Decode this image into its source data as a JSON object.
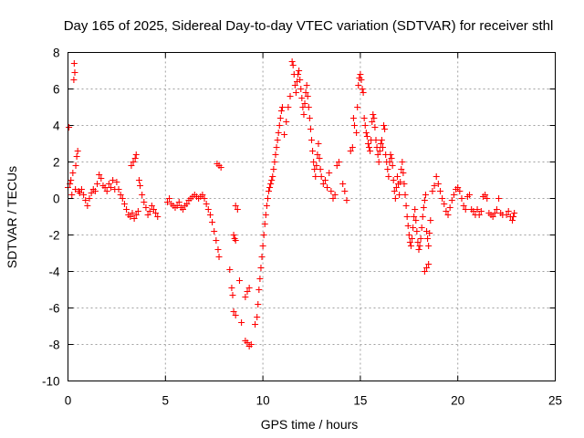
{
  "chart_data": {
    "type": "scatter",
    "title": "Day 165 of 2025, Sidereal Day-to-day VTEC variation (SDTVAR) for receiver sthl",
    "xlabel": "GPS time / hours",
    "ylabel": "SDTVAR / TECUs",
    "xlim": [
      0,
      25
    ],
    "ylim": [
      -10,
      8
    ],
    "x_ticks": [
      0,
      5,
      10,
      15,
      20,
      25
    ],
    "y_ticks": [
      -10,
      -8,
      -6,
      -4,
      -2,
      0,
      2,
      4,
      6,
      8
    ],
    "x_tick_labels": [
      "0",
      "5",
      "10",
      "15",
      "20",
      "25"
    ],
    "y_tick_labels": [
      "-10",
      "-8",
      "-6",
      "-4",
      "-2",
      "0",
      "2",
      "4",
      "6",
      "8"
    ],
    "grid": true,
    "marker": "+",
    "color": "#ff0000",
    "series": [
      {
        "name": "sthl",
        "points": [
          [
            0.0,
            0.6
          ],
          [
            0.05,
            3.9
          ],
          [
            0.1,
            0.8
          ],
          [
            0.15,
            1.0
          ],
          [
            0.2,
            0.2
          ],
          [
            0.25,
            1.4
          ],
          [
            0.3,
            6.5
          ],
          [
            0.32,
            7.4
          ],
          [
            0.35,
            6.9
          ],
          [
            0.38,
            0.5
          ],
          [
            0.4,
            1.8
          ],
          [
            0.45,
            2.3
          ],
          [
            0.5,
            2.6
          ],
          [
            0.55,
            0.4
          ],
          [
            0.6,
            0.3
          ],
          [
            0.7,
            0.5
          ],
          [
            0.8,
            0.2
          ],
          [
            0.9,
            -0.1
          ],
          [
            1.0,
            -0.4
          ],
          [
            1.1,
            0.0
          ],
          [
            1.2,
            0.3
          ],
          [
            1.3,
            0.5
          ],
          [
            1.4,
            0.4
          ],
          [
            1.5,
            0.8
          ],
          [
            1.6,
            1.3
          ],
          [
            1.7,
            1.1
          ],
          [
            1.8,
            0.7
          ],
          [
            1.9,
            0.6
          ],
          [
            2.0,
            0.4
          ],
          [
            2.1,
            0.8
          ],
          [
            2.2,
            0.6
          ],
          [
            2.3,
            1.0
          ],
          [
            2.4,
            0.5
          ],
          [
            2.5,
            0.9
          ],
          [
            2.6,
            0.5
          ],
          [
            2.7,
            0.2
          ],
          [
            2.8,
            0.0
          ],
          [
            2.9,
            -0.3
          ],
          [
            3.0,
            -0.6
          ],
          [
            3.1,
            -0.9
          ],
          [
            3.2,
            -1.0
          ],
          [
            3.3,
            -0.8
          ],
          [
            3.25,
            1.8
          ],
          [
            3.35,
            2.0
          ],
          [
            3.45,
            2.2
          ],
          [
            3.5,
            2.4
          ],
          [
            3.4,
            -1.1
          ],
          [
            3.5,
            -0.9
          ],
          [
            3.6,
            -0.7
          ],
          [
            3.65,
            1.0
          ],
          [
            3.7,
            0.7
          ],
          [
            3.8,
            0.2
          ],
          [
            3.9,
            -0.2
          ],
          [
            4.0,
            -0.5
          ],
          [
            4.1,
            -0.9
          ],
          [
            4.2,
            -0.7
          ],
          [
            4.3,
            -0.4
          ],
          [
            4.4,
            -0.6
          ],
          [
            4.5,
            -0.8
          ],
          [
            4.6,
            -1.0
          ],
          [
            5.1,
            -0.2
          ],
          [
            5.2,
            0.0
          ],
          [
            5.3,
            -0.3
          ],
          [
            5.4,
            -0.4
          ],
          [
            5.5,
            -0.5
          ],
          [
            5.6,
            -0.4
          ],
          [
            5.7,
            -0.2
          ],
          [
            5.8,
            -0.5
          ],
          [
            5.9,
            -0.6
          ],
          [
            6.0,
            -0.4
          ],
          [
            6.1,
            -0.3
          ],
          [
            6.2,
            -0.1
          ],
          [
            6.3,
            0.0
          ],
          [
            6.4,
            0.1
          ],
          [
            6.5,
            0.2
          ],
          [
            6.6,
            0.1
          ],
          [
            6.7,
            0.0
          ],
          [
            6.8,
            0.1
          ],
          [
            6.9,
            0.2
          ],
          [
            7.0,
            0.0
          ],
          [
            7.1,
            -0.3
          ],
          [
            7.2,
            -0.6
          ],
          [
            7.3,
            -0.9
          ],
          [
            7.4,
            -1.3
          ],
          [
            7.5,
            -1.8
          ],
          [
            7.6,
            -2.3
          ],
          [
            7.7,
            -2.8
          ],
          [
            7.75,
            -3.2
          ],
          [
            7.65,
            1.9
          ],
          [
            7.75,
            1.8
          ],
          [
            7.85,
            1.7
          ],
          [
            8.3,
            -3.9
          ],
          [
            8.4,
            -4.9
          ],
          [
            8.45,
            -5.3
          ],
          [
            8.5,
            -2.0
          ],
          [
            8.55,
            -2.2
          ],
          [
            8.6,
            -2.3
          ],
          [
            8.5,
            -6.2
          ],
          [
            8.6,
            -6.4
          ],
          [
            8.6,
            -0.4
          ],
          [
            8.7,
            -0.6
          ],
          [
            8.8,
            -4.5
          ],
          [
            8.9,
            -6.8
          ],
          [
            9.1,
            -5.4
          ],
          [
            9.2,
            -5.1
          ],
          [
            9.3,
            -4.9
          ],
          [
            9.1,
            -7.8
          ],
          [
            9.2,
            -7.9
          ],
          [
            9.3,
            -8.1
          ],
          [
            9.4,
            -8.0
          ],
          [
            9.6,
            -6.9
          ],
          [
            9.7,
            -6.5
          ],
          [
            9.75,
            -5.8
          ],
          [
            9.8,
            -5.0
          ],
          [
            9.85,
            -4.4
          ],
          [
            9.9,
            -3.8
          ],
          [
            9.95,
            -3.2
          ],
          [
            10.0,
            -2.6
          ],
          [
            10.05,
            -2.0
          ],
          [
            10.1,
            -1.4
          ],
          [
            10.15,
            -0.9
          ],
          [
            10.2,
            -0.4
          ],
          [
            10.25,
            0.0
          ],
          [
            10.3,
            0.4
          ],
          [
            10.35,
            0.6
          ],
          [
            10.4,
            0.8
          ],
          [
            10.45,
            1.0
          ],
          [
            10.5,
            1.2
          ],
          [
            10.55,
            1.6
          ],
          [
            10.6,
            2.0
          ],
          [
            10.65,
            2.4
          ],
          [
            10.7,
            2.8
          ],
          [
            10.75,
            3.2
          ],
          [
            10.8,
            3.6
          ],
          [
            10.85,
            4.0
          ],
          [
            10.9,
            4.4
          ],
          [
            10.95,
            4.8
          ],
          [
            11.0,
            5.0
          ],
          [
            11.1,
            3.5
          ],
          [
            11.2,
            4.2
          ],
          [
            11.3,
            5.0
          ],
          [
            11.4,
            5.6
          ],
          [
            11.5,
            7.5
          ],
          [
            11.55,
            7.3
          ],
          [
            11.6,
            6.8
          ],
          [
            11.65,
            6.2
          ],
          [
            11.7,
            5.8
          ],
          [
            11.75,
            6.4
          ],
          [
            11.8,
            6.8
          ],
          [
            11.85,
            7.0
          ],
          [
            11.9,
            6.5
          ],
          [
            11.95,
            6.0
          ],
          [
            12.0,
            5.5
          ],
          [
            12.05,
            5.0
          ],
          [
            12.1,
            4.6
          ],
          [
            12.15,
            5.2
          ],
          [
            12.2,
            5.8
          ],
          [
            12.25,
            6.2
          ],
          [
            12.3,
            5.6
          ],
          [
            12.35,
            5.0
          ],
          [
            12.4,
            4.4
          ],
          [
            12.45,
            3.8
          ],
          [
            12.5,
            3.2
          ],
          [
            12.55,
            2.6
          ],
          [
            12.6,
            2.0
          ],
          [
            12.65,
            1.6
          ],
          [
            12.7,
            1.2
          ],
          [
            12.75,
            1.8
          ],
          [
            12.8,
            2.4
          ],
          [
            12.85,
            3.0
          ],
          [
            12.9,
            2.2
          ],
          [
            12.95,
            1.6
          ],
          [
            13.0,
            1.2
          ],
          [
            13.1,
            0.8
          ],
          [
            13.2,
            1.0
          ],
          [
            13.3,
            0.6
          ],
          [
            13.4,
            1.4
          ],
          [
            13.5,
            0.4
          ],
          [
            13.6,
            0.0
          ],
          [
            13.7,
            0.2
          ],
          [
            13.8,
            1.8
          ],
          [
            13.9,
            2.0
          ],
          [
            14.1,
            0.8
          ],
          [
            14.2,
            0.4
          ],
          [
            14.3,
            -0.1
          ],
          [
            14.5,
            2.6
          ],
          [
            14.6,
            2.8
          ],
          [
            14.65,
            4.4
          ],
          [
            14.7,
            4.0
          ],
          [
            14.8,
            3.6
          ],
          [
            14.85,
            5.0
          ],
          [
            14.9,
            6.2
          ],
          [
            14.95,
            6.6
          ],
          [
            15.0,
            6.8
          ],
          [
            15.05,
            6.5
          ],
          [
            15.1,
            6.0
          ],
          [
            15.15,
            5.8
          ],
          [
            15.2,
            4.4
          ],
          [
            15.25,
            4.0
          ],
          [
            15.3,
            3.6
          ],
          [
            15.35,
            3.4
          ],
          [
            15.4,
            3.0
          ],
          [
            15.45,
            2.8
          ],
          [
            15.5,
            2.6
          ],
          [
            15.55,
            3.2
          ],
          [
            15.6,
            4.2
          ],
          [
            15.65,
            4.6
          ],
          [
            15.7,
            4.4
          ],
          [
            15.75,
            3.9
          ],
          [
            15.8,
            3.2
          ],
          [
            15.85,
            2.8
          ],
          [
            15.9,
            2.4
          ],
          [
            15.95,
            2.0
          ],
          [
            16.0,
            2.6
          ],
          [
            16.05,
            3.0
          ],
          [
            16.1,
            3.2
          ],
          [
            16.15,
            2.8
          ],
          [
            16.2,
            4.0
          ],
          [
            16.25,
            3.8
          ],
          [
            16.3,
            2.4
          ],
          [
            16.35,
            2.0
          ],
          [
            16.4,
            1.6
          ],
          [
            16.45,
            1.2
          ],
          [
            16.5,
            2.0
          ],
          [
            16.55,
            2.4
          ],
          [
            16.6,
            2.2
          ],
          [
            16.65,
            1.8
          ],
          [
            16.7,
            1.0
          ],
          [
            16.75,
            0.4
          ],
          [
            16.8,
            0.0
          ],
          [
            16.85,
            0.6
          ],
          [
            16.9,
            1.2
          ],
          [
            16.95,
            0.8
          ],
          [
            17.0,
            0.2
          ],
          [
            17.05,
            0.9
          ],
          [
            17.1,
            1.6
          ],
          [
            17.15,
            2.0
          ],
          [
            17.2,
            1.4
          ],
          [
            17.25,
            0.8
          ],
          [
            17.3,
            0.2
          ],
          [
            17.35,
            -0.4
          ],
          [
            17.4,
            -1.0
          ],
          [
            17.45,
            -1.5
          ],
          [
            17.5,
            -2.0
          ],
          [
            17.55,
            -2.4
          ],
          [
            17.6,
            -2.6
          ],
          [
            17.65,
            -2.2
          ],
          [
            17.7,
            -1.6
          ],
          [
            17.75,
            -1.0
          ],
          [
            17.8,
            -0.6
          ],
          [
            17.85,
            -1.2
          ],
          [
            17.9,
            -1.8
          ],
          [
            17.95,
            -2.4
          ],
          [
            18.0,
            -2.8
          ],
          [
            18.05,
            -2.6
          ],
          [
            18.1,
            -2.2
          ],
          [
            18.15,
            -1.6
          ],
          [
            18.2,
            -1.0
          ],
          [
            18.25,
            -0.5
          ],
          [
            18.3,
            -0.1
          ],
          [
            18.35,
            0.2
          ],
          [
            18.4,
            -1.8
          ],
          [
            18.45,
            -2.2
          ],
          [
            18.5,
            -2.6
          ],
          [
            18.55,
            -1.9
          ],
          [
            18.6,
            -1.2
          ],
          [
            18.3,
            -4.0
          ],
          [
            18.4,
            -3.8
          ],
          [
            18.5,
            -3.6
          ],
          [
            18.7,
            0.4
          ],
          [
            18.8,
            0.7
          ],
          [
            18.9,
            1.2
          ],
          [
            19.0,
            0.8
          ],
          [
            19.1,
            0.4
          ],
          [
            19.2,
            0.0
          ],
          [
            19.3,
            -0.3
          ],
          [
            19.4,
            -0.7
          ],
          [
            19.5,
            -0.9
          ],
          [
            19.6,
            -0.5
          ],
          [
            19.7,
            -0.1
          ],
          [
            19.8,
            0.2
          ],
          [
            19.9,
            0.5
          ],
          [
            20.0,
            0.6
          ],
          [
            20.1,
            0.4
          ],
          [
            20.2,
            0.0
          ],
          [
            20.3,
            -0.4
          ],
          [
            20.4,
            -0.6
          ],
          [
            20.5,
            0.1
          ],
          [
            20.6,
            0.2
          ],
          [
            20.7,
            -0.6
          ],
          [
            20.8,
            -0.7
          ],
          [
            20.9,
            -0.9
          ],
          [
            21.0,
            -0.6
          ],
          [
            21.1,
            -0.9
          ],
          [
            21.2,
            -0.7
          ],
          [
            21.3,
            0.1
          ],
          [
            21.4,
            0.2
          ],
          [
            21.5,
            0.0
          ],
          [
            21.6,
            -0.8
          ],
          [
            21.7,
            -0.9
          ],
          [
            21.8,
            -1.0
          ],
          [
            21.9,
            -0.8
          ],
          [
            22.0,
            -0.6
          ],
          [
            22.1,
            0.0
          ],
          [
            22.2,
            -0.8
          ],
          [
            22.3,
            -0.9
          ],
          [
            22.5,
            -0.9
          ],
          [
            22.6,
            -0.7
          ],
          [
            22.7,
            -1.0
          ],
          [
            22.8,
            -1.2
          ],
          [
            22.85,
            -1.0
          ],
          [
            22.9,
            -0.8
          ]
        ]
      }
    ]
  }
}
